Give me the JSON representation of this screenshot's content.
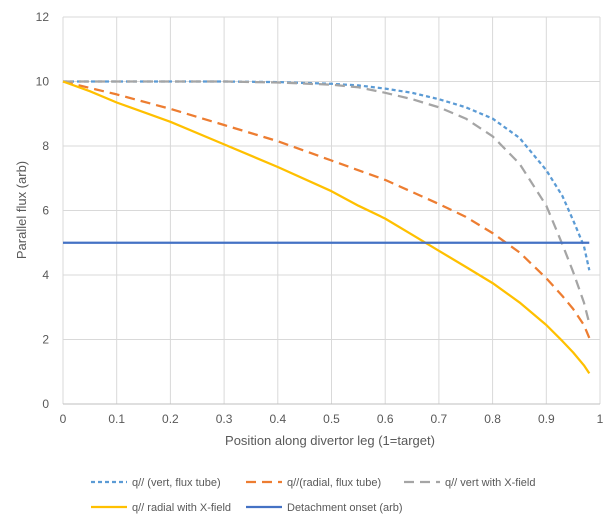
{
  "chart_data": {
    "type": "line",
    "title": "",
    "xlabel": "Position along divertor leg (1=target)",
    "ylabel": "Parallel flux (arb)",
    "xlim": [
      0,
      1
    ],
    "ylim": [
      0,
      12
    ],
    "x_ticks": [
      "0",
      "0.1",
      "0.2",
      "0.3",
      "0.4",
      "0.5",
      "0.6",
      "0.7",
      "0.8",
      "0.9",
      "1"
    ],
    "y_ticks": [
      "0",
      "2",
      "4",
      "6",
      "8",
      "10",
      "12"
    ],
    "grid": true,
    "legend_position": "bottom",
    "series": [
      {
        "name": "q// (vert, flux tube)",
        "color": "#5b9bd5",
        "dash": "short-dash",
        "x": [
          0,
          0.1,
          0.2,
          0.3,
          0.4,
          0.5,
          0.55,
          0.6,
          0.65,
          0.7,
          0.75,
          0.8,
          0.85,
          0.9,
          0.93,
          0.95,
          0.97,
          0.98
        ],
        "y": [
          10,
          10,
          10,
          10,
          9.98,
          9.93,
          9.88,
          9.78,
          9.65,
          9.45,
          9.2,
          8.85,
          8.25,
          7.25,
          6.45,
          5.7,
          4.9,
          4.15
        ]
      },
      {
        "name": "q//(radial, flux tube)",
        "color": "#ed7d31",
        "dash": "long-dash",
        "x": [
          0,
          0.1,
          0.2,
          0.3,
          0.4,
          0.5,
          0.6,
          0.7,
          0.75,
          0.8,
          0.85,
          0.9,
          0.93,
          0.95,
          0.97,
          0.98
        ],
        "y": [
          10,
          9.6,
          9.15,
          8.65,
          8.15,
          7.55,
          6.95,
          6.2,
          5.8,
          5.3,
          4.7,
          3.9,
          3.35,
          2.95,
          2.45,
          2.05
        ]
      },
      {
        "name": "q// vert with X-field",
        "color": "#a5a5a5",
        "dash": "long-dash",
        "x": [
          0,
          0.1,
          0.2,
          0.3,
          0.4,
          0.5,
          0.55,
          0.6,
          0.65,
          0.7,
          0.75,
          0.8,
          0.85,
          0.9,
          0.93,
          0.95,
          0.97,
          0.98
        ],
        "y": [
          10,
          10,
          10,
          10,
          9.97,
          9.9,
          9.82,
          9.65,
          9.45,
          9.2,
          8.85,
          8.3,
          7.45,
          6.15,
          4.95,
          4.1,
          3.15,
          2.5
        ]
      },
      {
        "name": "q// radial with X-field",
        "color": "#ffc000",
        "dash": "solid",
        "x": [
          0,
          0.05,
          0.1,
          0.2,
          0.3,
          0.4,
          0.5,
          0.55,
          0.6,
          0.65,
          0.7,
          0.75,
          0.8,
          0.85,
          0.9,
          0.93,
          0.95,
          0.97,
          0.98
        ],
        "y": [
          10,
          9.7,
          9.35,
          8.75,
          8.05,
          7.35,
          6.6,
          6.15,
          5.75,
          5.25,
          4.75,
          4.25,
          3.75,
          3.15,
          2.45,
          1.95,
          1.6,
          1.2,
          0.95
        ]
      },
      {
        "name": "Detachment onset (arb)",
        "color": "#4472c4",
        "dash": "solid",
        "x": [
          0,
          0.98
        ],
        "y": [
          5,
          5
        ]
      }
    ]
  }
}
